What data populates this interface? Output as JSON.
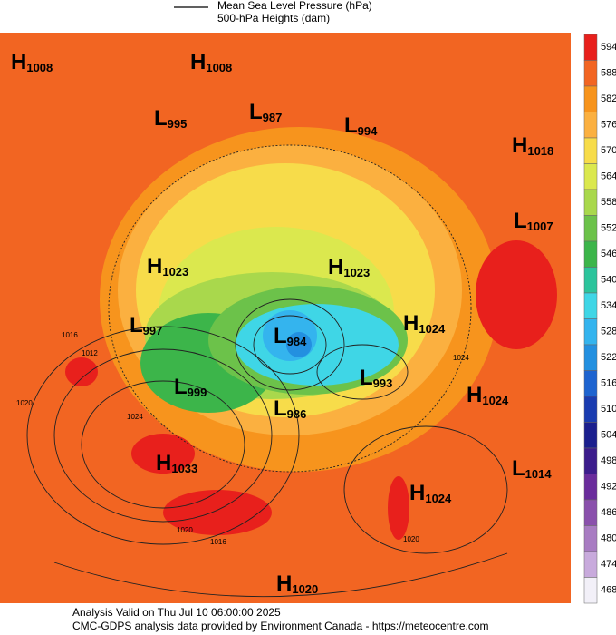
{
  "legend": {
    "line_label": "Mean Sea Level Pressure (hPa)",
    "fill_label": "500-hPa Heights (dam)"
  },
  "colorbar": {
    "levels": [
      594,
      588,
      582,
      576,
      570,
      564,
      558,
      552,
      546,
      540,
      534,
      528,
      522,
      516,
      510,
      504,
      498,
      492,
      486,
      480,
      474,
      468
    ],
    "colors": [
      "#e8201c",
      "#f26522",
      "#f7941d",
      "#fbb040",
      "#f7dc4a",
      "#dbe84e",
      "#a9d84c",
      "#6cc24a",
      "#3cb54a",
      "#2cc49c",
      "#3fd6e6",
      "#34b4ee",
      "#2390e0",
      "#1e64d0",
      "#1a3cb0",
      "#1b1f8e",
      "#3c1d8c",
      "#6a2c9c",
      "#8a50ac",
      "#a87cc2",
      "#c8aadc",
      "#f2f0f8"
    ]
  },
  "centers": [
    {
      "type": "H",
      "pressure": 1008
    },
    {
      "type": "H",
      "pressure": 1008
    },
    {
      "type": "L",
      "pressure": 995
    },
    {
      "type": "L",
      "pressure": 987
    },
    {
      "type": "L",
      "pressure": 994
    },
    {
      "type": "H",
      "pressure": 1018
    },
    {
      "type": "L",
      "pressure": 1007
    },
    {
      "type": "H",
      "pressure": 1023
    },
    {
      "type": "H",
      "pressure": 1023
    },
    {
      "type": "L",
      "pressure": 997
    },
    {
      "type": "H",
      "pressure": 1024
    },
    {
      "type": "L",
      "pressure": 984
    },
    {
      "type": "L",
      "pressure": 993
    },
    {
      "type": "L",
      "pressure": 999
    },
    {
      "type": "L",
      "pressure": 986
    },
    {
      "type": "H",
      "pressure": 1024
    },
    {
      "type": "H",
      "pressure": 1033
    },
    {
      "type": "L",
      "pressure": 1014
    },
    {
      "type": "H",
      "pressure": 1024
    },
    {
      "type": "H",
      "pressure": 1020
    }
  ],
  "isobar_labels": [
    1020,
    1016,
    1012,
    1024,
    1020,
    1016,
    1024,
    1020
  ],
  "footer": {
    "valid": "Analysis Valid on Thu Jul 10 06:00:00 2025",
    "credit": "CMC-GDPS analysis data provided by Environment Canada - https://meteocentre.com"
  }
}
